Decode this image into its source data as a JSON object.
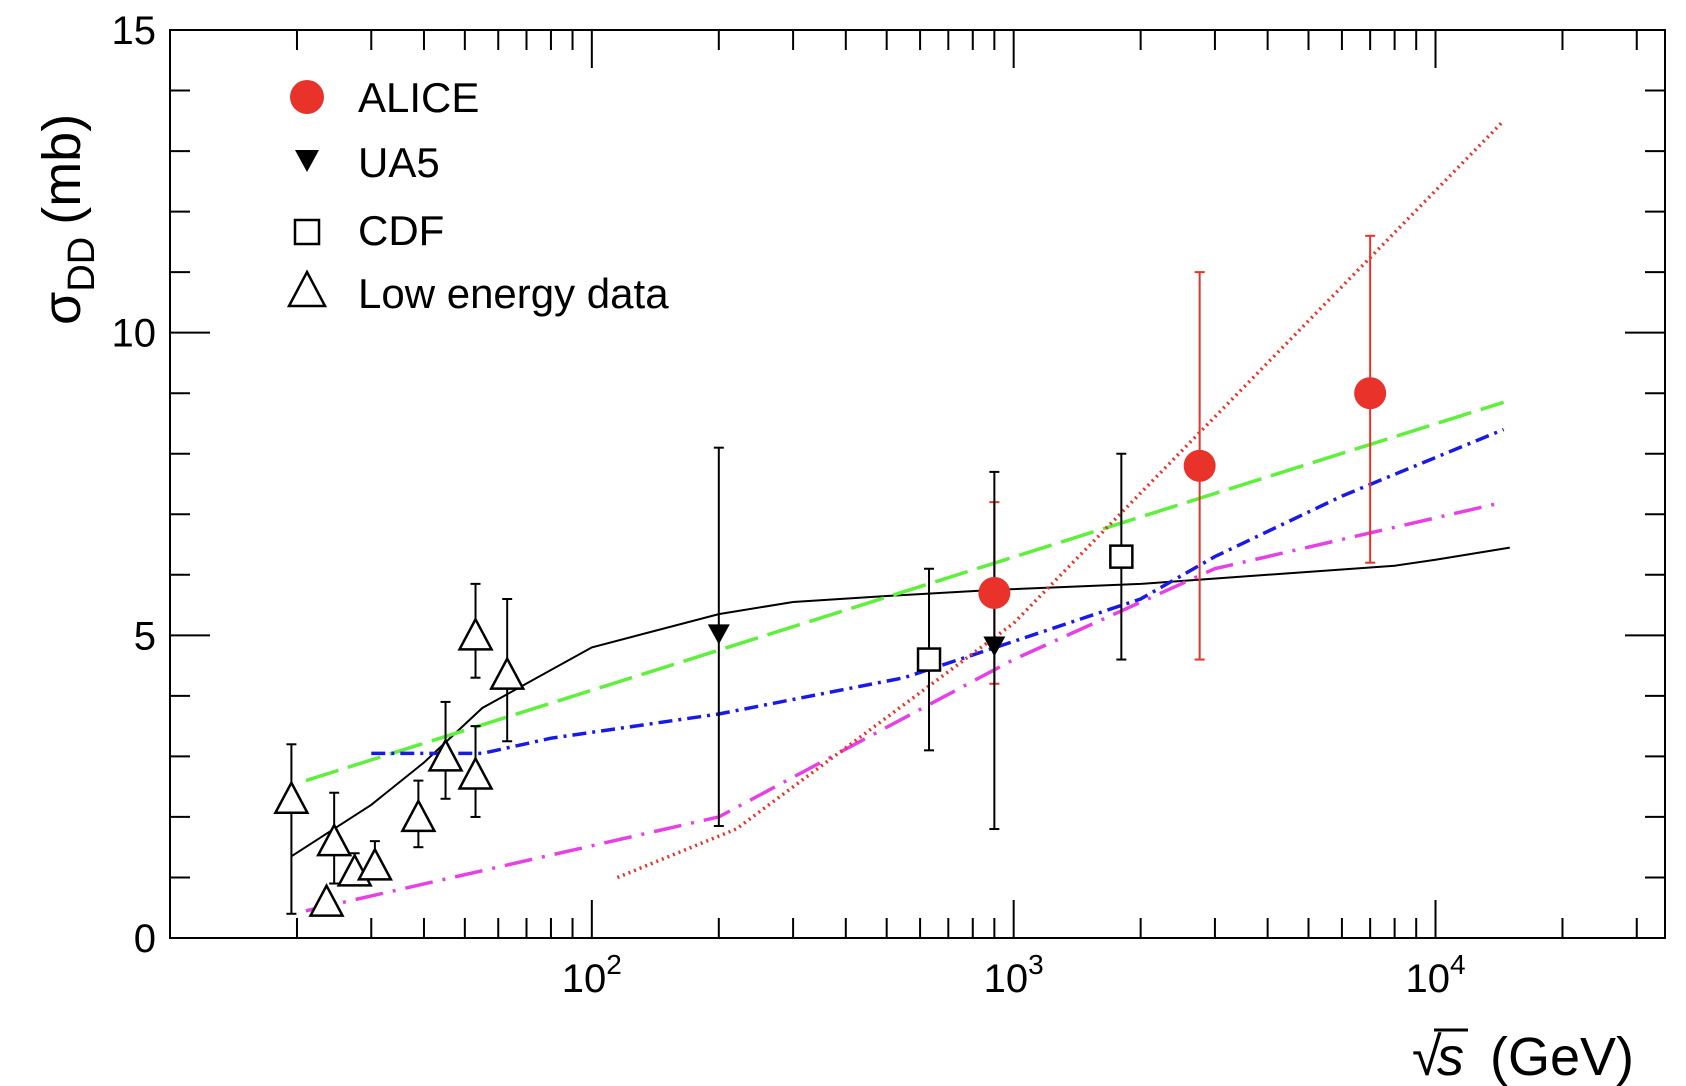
{
  "chart_data": {
    "type": "scatter",
    "title": "",
    "xlabel": {
      "sqrt": "√",
      "var": "s",
      "unit": "(GeV)"
    },
    "ylabel": {
      "sym": "σ",
      "sub": "DD",
      "unit": "(mb)"
    },
    "xscale": "log",
    "xlim": [
      10,
      35000
    ],
    "ylim": [
      0,
      15
    ],
    "yticks": [
      0,
      5,
      10,
      15
    ],
    "xticks": [
      {
        "value": 100,
        "base": "10",
        "exp": "2"
      },
      {
        "value": 1000,
        "base": "10",
        "exp": "3"
      },
      {
        "value": 10000,
        "base": "10",
        "exp": "4"
      }
    ],
    "legend": {
      "placement": "top-left",
      "entries": [
        {
          "label": "ALICE",
          "marker": "filled-circle",
          "color": "#e8322a"
        },
        {
          "label": "UA5",
          "marker": "filled-triangle-down",
          "color": "#000000"
        },
        {
          "label": "CDF",
          "marker": "open-square",
          "color": "#000000"
        },
        {
          "label": "Low energy data",
          "marker": "open-triangle-up",
          "color": "#000000"
        }
      ]
    },
    "series": [
      {
        "name": "ALICE",
        "marker": "filled-circle",
        "color": "#e8322a",
        "points": [
          {
            "x": 900,
            "y": 5.7,
            "ylo": 4.2,
            "yhi": 7.2
          },
          {
            "x": 2760,
            "y": 7.8,
            "ylo": 4.6,
            "yhi": 11.0
          },
          {
            "x": 7000,
            "y": 9.0,
            "ylo": 6.2,
            "yhi": 11.6
          }
        ]
      },
      {
        "name": "UA5",
        "marker": "filled-triangle-down",
        "color": "#000000",
        "points": [
          {
            "x": 200,
            "y": 5.0,
            "ylo": 1.85,
            "yhi": 8.1
          },
          {
            "x": 900,
            "y": 4.8,
            "ylo": 1.8,
            "yhi": 7.7
          }
        ]
      },
      {
        "name": "CDF",
        "marker": "open-square",
        "color": "#000000",
        "points": [
          {
            "x": 630,
            "y": 4.6,
            "ylo": 3.1,
            "yhi": 6.1
          },
          {
            "x": 1800,
            "y": 6.3,
            "ylo": 4.6,
            "yhi": 8.0
          }
        ]
      },
      {
        "name": "Low energy data",
        "marker": "open-triangle-up",
        "color": "#000000",
        "points": [
          {
            "x": 19.4,
            "y": 2.3,
            "ylo": 0.4,
            "yhi": 3.2
          },
          {
            "x": 23.5,
            "y": 0.6,
            "ylo": 0.5,
            "yhi": 0.7
          },
          {
            "x": 24.5,
            "y": 1.6,
            "ylo": 0.9,
            "yhi": 2.4
          },
          {
            "x": 27.4,
            "y": 1.1,
            "ylo": 0.9,
            "yhi": 1.4
          },
          {
            "x": 30.6,
            "y": 1.2,
            "ylo": 1.0,
            "yhi": 1.6
          },
          {
            "x": 38.8,
            "y": 2.0,
            "ylo": 1.5,
            "yhi": 2.6
          },
          {
            "x": 45,
            "y": 3.0,
            "ylo": 2.3,
            "yhi": 3.9
          },
          {
            "x": 53,
            "y": 5.0,
            "ylo": 4.3,
            "yhi": 5.85
          },
          {
            "x": 53,
            "y": 2.7,
            "ylo": 2.0,
            "yhi": 3.5
          },
          {
            "x": 63,
            "y": 4.35,
            "ylo": 3.25,
            "yhi": 5.6
          }
        ]
      }
    ],
    "curves": [
      {
        "name": "solid",
        "color": "#000000",
        "dash": "",
        "points": [
          [
            19.4,
            1.35
          ],
          [
            30,
            2.2
          ],
          [
            40,
            2.9
          ],
          [
            55,
            3.8
          ],
          [
            100,
            4.8
          ],
          [
            200,
            5.35
          ],
          [
            300,
            5.55
          ],
          [
            500,
            5.65
          ],
          [
            900,
            5.75
          ],
          [
            2000,
            5.85
          ],
          [
            4000,
            6.0
          ],
          [
            8000,
            6.15
          ],
          [
            10000,
            6.25
          ],
          [
            15000,
            6.45
          ]
        ]
      },
      {
        "name": "long-dash-green",
        "color": "#5ef03c",
        "dash": "34,10",
        "points": [
          [
            21,
            2.6
          ],
          [
            14500,
            8.85
          ]
        ]
      },
      {
        "name": "dash-dot-blue",
        "color": "#1a1ae6",
        "dash": "14,6,3,6",
        "points": [
          [
            30,
            3.05
          ],
          [
            55,
            3.05
          ],
          [
            80,
            3.3
          ],
          [
            200,
            3.7
          ],
          [
            550,
            4.3
          ],
          [
            1000,
            4.9
          ],
          [
            2000,
            5.6
          ],
          [
            3000,
            6.3
          ],
          [
            6000,
            7.3
          ],
          [
            14500,
            8.4
          ]
        ]
      },
      {
        "name": "dash-dot-magenta",
        "color": "#e640e6",
        "dash": "28,10,3,10",
        "points": [
          [
            21,
            0.45
          ],
          [
            200,
            2.0
          ],
          [
            1000,
            4.6
          ],
          [
            3000,
            6.1
          ],
          [
            14500,
            7.2
          ]
        ]
      },
      {
        "name": "dotted-red",
        "color": "#e8322a",
        "dash": "2,4",
        "points": [
          [
            115,
            1.0
          ],
          [
            220,
            1.8
          ],
          [
            1000,
            5.2
          ],
          [
            14500,
            13.5
          ]
        ]
      }
    ]
  }
}
